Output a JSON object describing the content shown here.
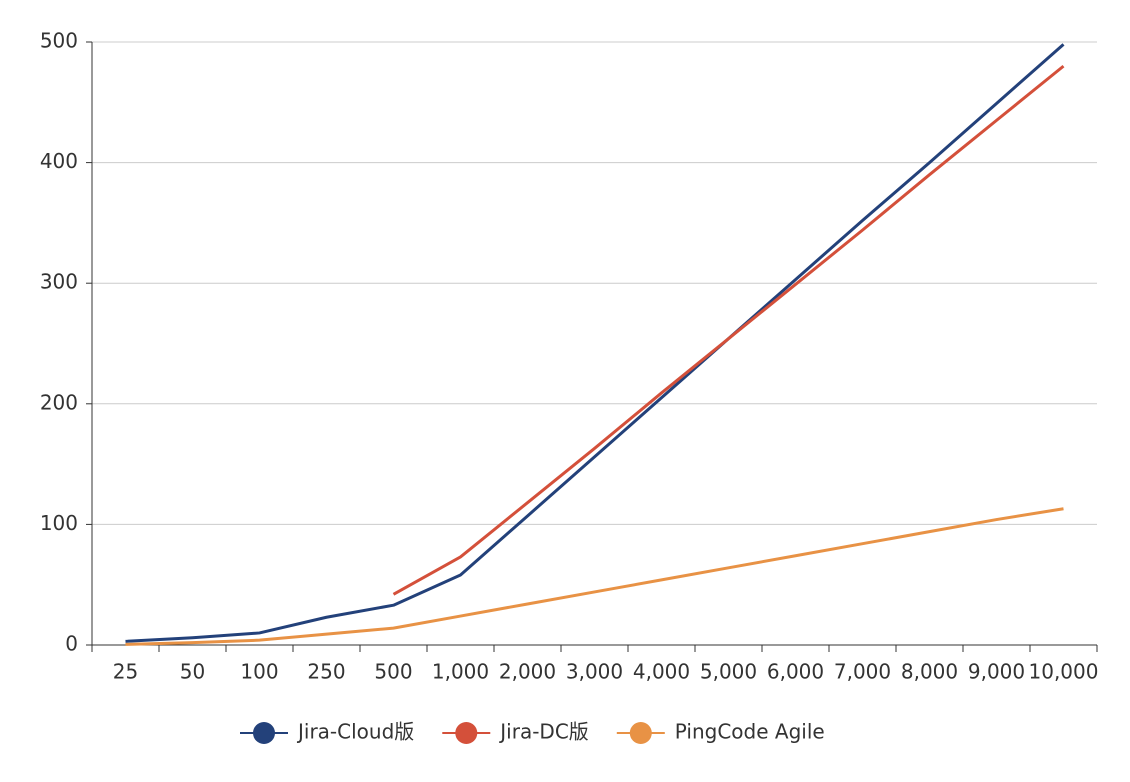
{
  "chart_data": {
    "type": "line",
    "categories": [
      "25",
      "50",
      "100",
      "250",
      "500",
      "1,000",
      "2,000",
      "3,000",
      "4,000",
      "5,000",
      "6,000",
      "7,000",
      "8,000",
      "9,000",
      "10,000"
    ],
    "series": [
      {
        "name": "Jira-Cloud版",
        "color": "#23417a",
        "values": [
          3,
          6,
          10,
          23,
          33,
          58,
          107,
          156,
          205,
          254,
          303,
          352,
          400,
          449,
          498
        ]
      },
      {
        "name": "Jira-DC版",
        "color": "#d4503a",
        "values": [
          null,
          null,
          null,
          null,
          42,
          73,
          118,
          163,
          209,
          254,
          299,
          344,
          390,
          435,
          480
        ]
      },
      {
        "name": "PingCode Agile",
        "color": "#e89245",
        "values": [
          0.5,
          2,
          4,
          9,
          14,
          24,
          34,
          44,
          54,
          64,
          74,
          84,
          94,
          104,
          113
        ]
      }
    ],
    "ylim": [
      0,
      500
    ],
    "yticks": [
      0,
      100,
      200,
      300,
      400,
      500
    ],
    "grid": true,
    "legend": "bottom"
  }
}
